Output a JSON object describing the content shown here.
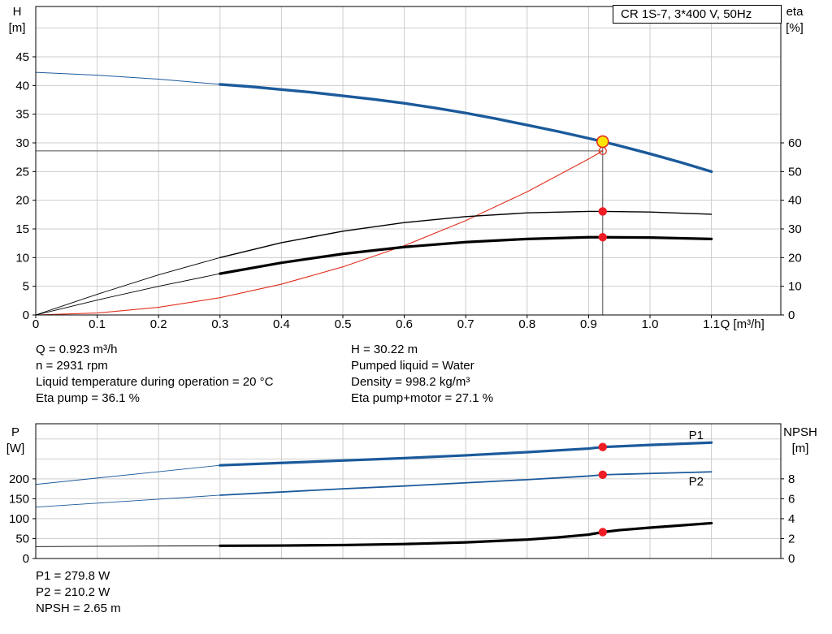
{
  "pump_title": "CR 1S-7, 3*400 V, 50Hz",
  "info": {
    "left": [
      "Q = 0.923 m³/h",
      "n = 2931 rpm",
      "Liquid temperature during operation = 20 °C",
      "Eta pump = 36.1 %"
    ],
    "right": [
      "H = 30.22 m",
      "Pumped liquid = Water",
      "Density = 998.2 kg/m³",
      "Eta pump+motor = 27.1 %"
    ]
  },
  "results": [
    "P1 = 279.8 W",
    "P2 = 210.2 W",
    "NPSH = 2.65 m"
  ],
  "colors": {
    "curve_blue": "#1b5a9b",
    "curve_black": "#000000",
    "curve_red": "#e0301e",
    "duty_yellow": "#ffe600",
    "dot_red": "#ee1c25",
    "grid": "#cdcdcd",
    "ref": "#4d4d4d"
  },
  "chart_data": [
    {
      "name": "hq",
      "type": "line",
      "title": "CR 1S-7, 3*400 V, 50Hz",
      "x": {
        "label": "Q [m³/h]",
        "tick_values": [
          0,
          0.1,
          0.2,
          0.3,
          0.4,
          0.5,
          0.6,
          0.7,
          0.8,
          0.9,
          1.0,
          1.1
        ],
        "tick_labels": [
          "0",
          "0.1",
          "0.2",
          "0.3",
          "0.4",
          "0.5",
          "0.6",
          "0.7",
          "0.8",
          "0.9",
          "1.0",
          "1.1"
        ],
        "grid_values": [
          0.1,
          0.2,
          0.3,
          0.4,
          0.5,
          0.6,
          0.7,
          0.8,
          0.9,
          1.0,
          1.1
        ]
      },
      "left_axis": {
        "title": [
          "H",
          "[m]"
        ],
        "tick_values": [
          0,
          5,
          10,
          15,
          20,
          25,
          30,
          35,
          40,
          45
        ],
        "tick_labels": [
          "0",
          "5",
          "10",
          "15",
          "20",
          "25",
          "30",
          "35",
          "40",
          "45"
        ],
        "grid_values": [
          5,
          10,
          15,
          20,
          25,
          30,
          35,
          40,
          45,
          50
        ]
      },
      "right_axis": {
        "title": [
          "eta",
          "[%]"
        ],
        "tick_values": [
          0,
          10,
          20,
          30,
          40,
          50,
          60
        ],
        "tick_labels": [
          "0",
          "10",
          "20",
          "30",
          "40",
          "50",
          "60"
        ]
      },
      "series": [
        {
          "name": "qh-curve-lead",
          "axis": "left",
          "color": "#1b5a9b",
          "width": 1,
          "points": [
            [
              0,
              42.3
            ],
            [
              0.1,
              41.8
            ],
            [
              0.2,
              41.1
            ],
            [
              0.3,
              40.2
            ]
          ]
        },
        {
          "name": "qh-curve",
          "axis": "left",
          "color": "#1b5a9b",
          "width": 3.4,
          "points": [
            [
              0.3,
              40.2
            ],
            [
              0.35,
              39.8
            ],
            [
              0.4,
              39.3
            ],
            [
              0.45,
              38.8
            ],
            [
              0.5,
              38.2
            ],
            [
              0.55,
              37.6
            ],
            [
              0.6,
              36.9
            ],
            [
              0.65,
              36.1
            ],
            [
              0.7,
              35.2
            ],
            [
              0.75,
              34.2
            ],
            [
              0.8,
              33.1
            ],
            [
              0.85,
              32.0
            ],
            [
              0.9,
              30.8
            ],
            [
              0.923,
              30.22
            ],
            [
              0.95,
              29.5
            ],
            [
              1.0,
              28.1
            ],
            [
              1.05,
              26.6
            ],
            [
              1.1,
              25.0
            ]
          ]
        },
        {
          "name": "system-curve",
          "axis": "left",
          "color": "#e0301e",
          "width": 1.1,
          "points": [
            [
              0,
              0
            ],
            [
              0.1,
              0.34
            ],
            [
              0.2,
              1.34
            ],
            [
              0.3,
              3.02
            ],
            [
              0.4,
              5.37
            ],
            [
              0.5,
              8.39
            ],
            [
              0.6,
              12.08
            ],
            [
              0.7,
              16.45
            ],
            [
              0.8,
              21.48
            ],
            [
              0.9,
              27.19
            ],
            [
              0.923,
              28.6
            ]
          ]
        },
        {
          "name": "eta-pump-lead",
          "axis": "right",
          "color": "#000000",
          "width": 0.9,
          "points": [
            [
              0,
              0
            ],
            [
              0.1,
              7.2
            ],
            [
              0.2,
              14.0
            ],
            [
              0.3,
              20.0
            ]
          ]
        },
        {
          "name": "eta-pump-curve",
          "axis": "right",
          "color": "#000000",
          "width": 1.4,
          "points": [
            [
              0.3,
              20.0
            ],
            [
              0.4,
              25.2
            ],
            [
              0.5,
              29.2
            ],
            [
              0.6,
              32.2
            ],
            [
              0.7,
              34.3
            ],
            [
              0.8,
              35.6
            ],
            [
              0.9,
              36.1
            ],
            [
              0.923,
              36.1
            ],
            [
              1.0,
              35.9
            ],
            [
              1.1,
              35.1
            ]
          ]
        },
        {
          "name": "eta-pump-motor-lead",
          "axis": "right",
          "color": "#000000",
          "width": 0.9,
          "points": [
            [
              0,
              0
            ],
            [
              0.1,
              5.2
            ],
            [
              0.2,
              10.0
            ],
            [
              0.3,
              14.4
            ]
          ]
        },
        {
          "name": "eta-pump-motor-curve",
          "axis": "right",
          "color": "#000000",
          "width": 3.2,
          "points": [
            [
              0.3,
              14.4
            ],
            [
              0.4,
              18.2
            ],
            [
              0.5,
              21.3
            ],
            [
              0.6,
              23.7
            ],
            [
              0.7,
              25.4
            ],
            [
              0.8,
              26.5
            ],
            [
              0.9,
              27.1
            ],
            [
              0.923,
              27.1
            ],
            [
              1.0,
              27.0
            ],
            [
              1.1,
              26.5
            ]
          ]
        }
      ],
      "ref_lines": [
        {
          "name": "duty-vertical-line",
          "type": "v",
          "x": 0.923,
          "to_value": 30.22,
          "axis": "left"
        },
        {
          "name": "duty-horizontal-line",
          "type": "h",
          "value": 28.6,
          "axis": "left",
          "to_x": 0.923
        }
      ],
      "markers": [
        {
          "name": "system-open-point",
          "x": 0.923,
          "value": 28.6,
          "axis": "left",
          "r": 4.5,
          "fill": "none",
          "stroke": "#e0301e",
          "stroke_width": 1.3
        },
        {
          "name": "eta-pump-point",
          "x": 0.923,
          "value": 36.1,
          "axis": "right",
          "r": 5.2,
          "fill": "#ee1c25"
        },
        {
          "name": "eta-pump-motor-point",
          "x": 0.923,
          "value": 27.1,
          "axis": "right",
          "r": 5.2,
          "fill": "#ee1c25"
        },
        {
          "name": "duty-point",
          "x": 0.923,
          "value": 30.22,
          "axis": "left",
          "r": 7,
          "fill": "#ffe600",
          "stroke": "#e0301e",
          "stroke_width": 1.6
        }
      ]
    },
    {
      "name": "power-npsh",
      "type": "line",
      "x": {
        "grid_values": [
          0.1,
          0.2,
          0.3,
          0.4,
          0.5,
          0.6,
          0.7,
          0.8,
          0.9,
          1.0,
          1.1
        ]
      },
      "left_axis": {
        "title": [
          "P",
          "[W]"
        ],
        "tick_values": [
          0,
          50,
          100,
          150,
          200
        ],
        "tick_labels": [
          "0",
          "50",
          "100",
          "150",
          "200"
        ],
        "grid_values": [
          50,
          100,
          150,
          200,
          250,
          300
        ]
      },
      "right_axis": {
        "title": [
          "NPSH",
          "[m]"
        ],
        "tick_values": [
          0,
          2,
          4,
          6,
          8
        ],
        "tick_labels": [
          "0",
          "2",
          "4",
          "6",
          "8"
        ]
      },
      "series": [
        {
          "name": "p1-lead",
          "axis": "left",
          "color": "#1b5a9b",
          "width": 0.9,
          "points": [
            [
              0,
              186
            ],
            [
              0.1,
              202
            ],
            [
              0.2,
              218
            ],
            [
              0.3,
              234
            ]
          ]
        },
        {
          "name": "p1-curve",
          "axis": "left",
          "color": "#1b5a9b",
          "width": 3.2,
          "points": [
            [
              0.3,
              234
            ],
            [
              0.4,
              240
            ],
            [
              0.5,
              246
            ],
            [
              0.6,
              252
            ],
            [
              0.7,
              259
            ],
            [
              0.8,
              267
            ],
            [
              0.9,
              276
            ],
            [
              0.923,
              279.8
            ],
            [
              1.0,
              285
            ],
            [
              1.1,
              291
            ]
          ]
        },
        {
          "name": "p2-lead",
          "axis": "left",
          "color": "#1b5a9b",
          "width": 0.9,
          "points": [
            [
              0,
              129
            ],
            [
              0.1,
              139
            ],
            [
              0.2,
              149
            ],
            [
              0.3,
              159
            ]
          ]
        },
        {
          "name": "p2-curve",
          "axis": "left",
          "color": "#1b5a9b",
          "width": 1.8,
          "points": [
            [
              0.3,
              159
            ],
            [
              0.4,
              167
            ],
            [
              0.5,
              175
            ],
            [
              0.6,
              182
            ],
            [
              0.7,
              190
            ],
            [
              0.8,
              198
            ],
            [
              0.9,
              207
            ],
            [
              0.923,
              210.2
            ],
            [
              1.0,
              213.5
            ],
            [
              1.1,
              217.5
            ]
          ]
        },
        {
          "name": "npsh-lead",
          "axis": "right",
          "color": "#000000",
          "width": 0.9,
          "points": [
            [
              0,
              1.2
            ],
            [
              0.15,
              1.24
            ],
            [
              0.3,
              1.28
            ]
          ]
        },
        {
          "name": "npsh-curve",
          "axis": "right",
          "color": "#000000",
          "width": 3.2,
          "points": [
            [
              0.3,
              1.28
            ],
            [
              0.4,
              1.3
            ],
            [
              0.5,
              1.35
            ],
            [
              0.6,
              1.45
            ],
            [
              0.7,
              1.62
            ],
            [
              0.8,
              1.9
            ],
            [
              0.85,
              2.12
            ],
            [
              0.9,
              2.4
            ],
            [
              0.923,
              2.65
            ],
            [
              0.95,
              2.85
            ],
            [
              1.0,
              3.1
            ],
            [
              1.05,
              3.32
            ],
            [
              1.1,
              3.55
            ]
          ]
        }
      ],
      "labels": [
        {
          "name": "p1-series-label",
          "text": "P1",
          "x": 1.063,
          "value": 300,
          "axis": "left",
          "color": "#1b5a9b"
        },
        {
          "name": "p2-series-label",
          "text": "P2",
          "x": 1.063,
          "value": 183,
          "axis": "left",
          "color": "#1b5a9b"
        }
      ],
      "markers": [
        {
          "name": "p1-point",
          "x": 0.923,
          "value": 279.8,
          "axis": "left",
          "r": 5.2,
          "fill": "#ee1c25"
        },
        {
          "name": "p2-point",
          "x": 0.923,
          "value": 210.2,
          "axis": "left",
          "r": 5.2,
          "fill": "#ee1c25"
        },
        {
          "name": "npsh-point",
          "x": 0.923,
          "value": 2.65,
          "axis": "right",
          "r": 5.2,
          "fill": "#ee1c25"
        }
      ]
    }
  ]
}
